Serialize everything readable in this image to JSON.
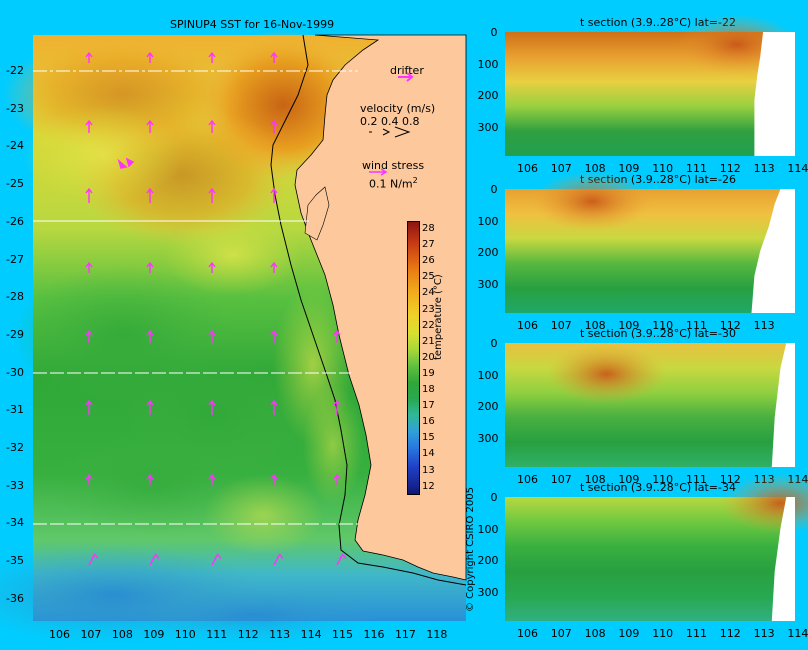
{
  "map": {
    "title": "SPINUP4 SST for 16-Nov-1999",
    "lon_ticks": [
      "106",
      "107",
      "108",
      "109",
      "110",
      "111",
      "112",
      "113",
      "114",
      "115",
      "116",
      "117",
      "118"
    ],
    "lat_ticks": [
      "-22",
      "-23",
      "-24",
      "-25",
      "-26",
      "-27",
      "-28",
      "-29",
      "-30",
      "-31",
      "-32",
      "-33",
      "-34",
      "-35",
      "-36"
    ],
    "section_lats": [
      "-22",
      "-26",
      "-30",
      "-34"
    ],
    "land_color": "#fcc89c"
  },
  "legend": {
    "drifter_label": "drifter",
    "velocity_label": "velocity (m/s)",
    "velocity_scale": "0.2 0.4 0.8",
    "wind_label": "wind stress",
    "wind_scale": "0.1 N/m",
    "wind_scale_sup": "2",
    "arrow_color": "#ff33ff"
  },
  "colorbar": {
    "ticks": [
      "28",
      "27",
      "26",
      "25",
      "24",
      "23",
      "22",
      "21",
      "20",
      "19",
      "18",
      "17",
      "16",
      "15",
      "14",
      "13",
      "12"
    ],
    "label": "temperature (°C)"
  },
  "sections": [
    {
      "title": "t section (3.9..28°C) lat=-22",
      "x_ticks": [
        "106",
        "107",
        "108",
        "109",
        "110",
        "111",
        "112",
        "113",
        "114"
      ],
      "y_ticks": [
        "0",
        "100",
        "200",
        "300"
      ]
    },
    {
      "title": "t section (3.9..28°C) lat=-26",
      "x_ticks": [
        "106",
        "107",
        "108",
        "109",
        "110",
        "111",
        "112",
        "113"
      ],
      "y_ticks": [
        "0",
        "100",
        "200",
        "300"
      ]
    },
    {
      "title": "t section (3.9..28°C) lat=-30",
      "x_ticks": [
        "106",
        "107",
        "108",
        "109",
        "110",
        "111",
        "112",
        "113",
        "114"
      ],
      "y_ticks": [
        "0",
        "100",
        "200",
        "300"
      ]
    },
    {
      "title": "t section (3.9..28°C) lat=-34",
      "x_ticks": [
        "106",
        "107",
        "108",
        "109",
        "110",
        "111",
        "112",
        "113",
        "114"
      ],
      "y_ticks": [
        "0",
        "100",
        "200",
        "300"
      ]
    }
  ],
  "copyright": "© Copyright CSIRO 2005"
}
